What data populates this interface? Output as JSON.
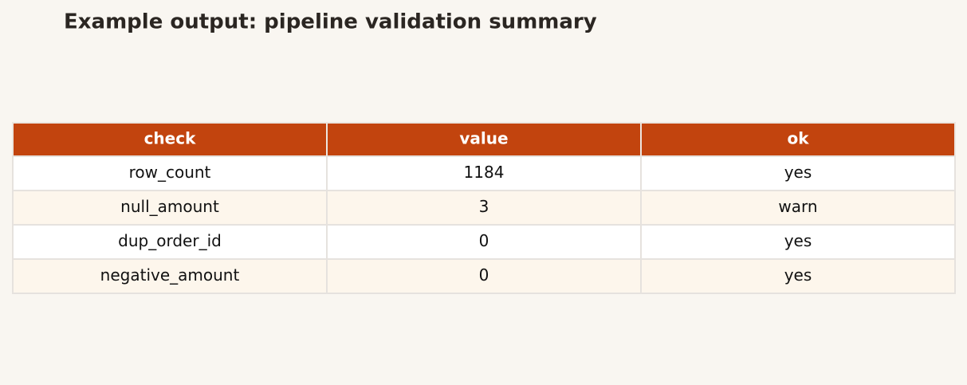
{
  "header": {
    "title": "Example output: pipeline validation summary"
  },
  "table": {
    "columns": [
      "check",
      "value",
      "ok"
    ],
    "rows": [
      [
        "row_count",
        1184,
        "yes"
      ],
      [
        "null_amount",
        3,
        "warn"
      ],
      [
        "dup_order_id",
        0,
        "yes"
      ],
      [
        "negative_amount",
        0,
        "yes"
      ]
    ]
  }
}
